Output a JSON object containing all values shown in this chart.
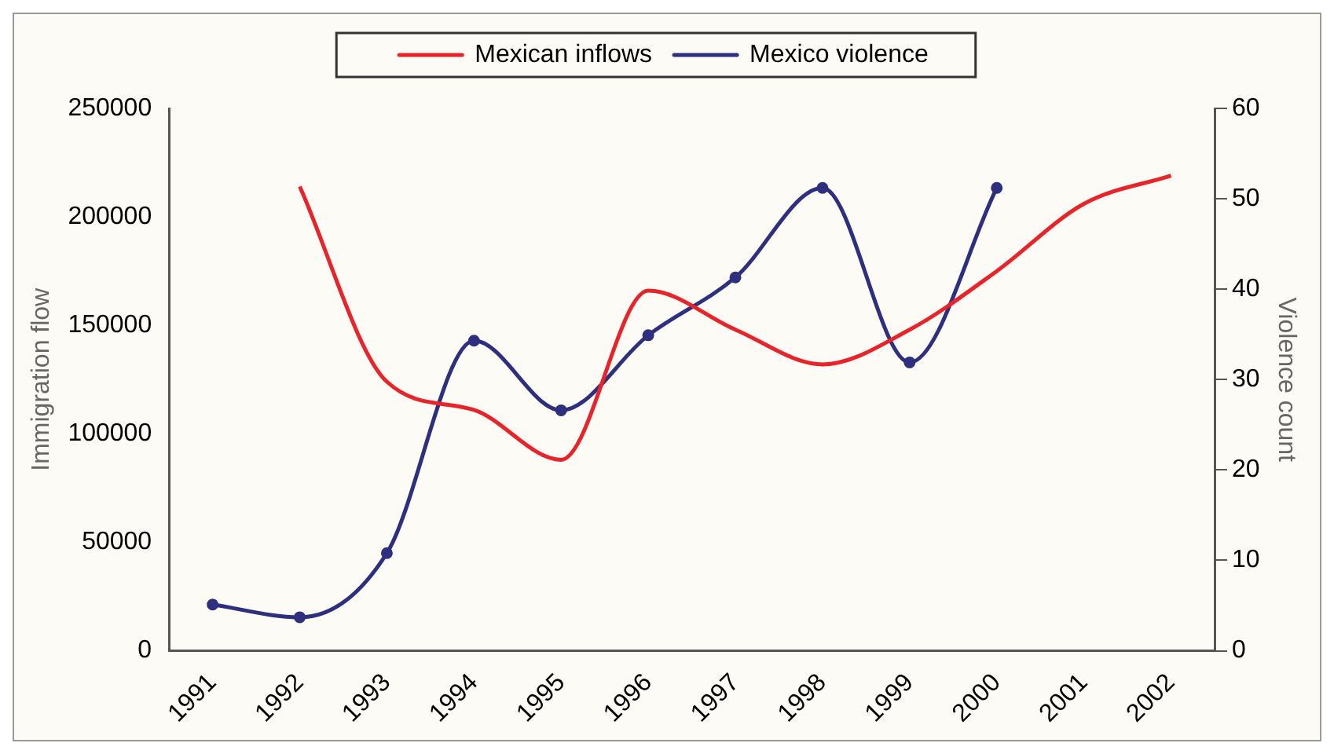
{
  "chart_data": {
    "type": "line",
    "xlabel": null,
    "ylabel": "Immigration flow",
    "y2label": "Violence count",
    "categories": [
      "1991",
      "1992",
      "1993",
      "1994",
      "1995",
      "1996",
      "1997",
      "1998",
      "1999",
      "2000",
      "2001",
      "2002"
    ],
    "series": [
      {
        "name": "Mexican inflows",
        "color": "#e8232a",
        "marker": "none",
        "values": [
          null,
          214000,
          124000,
          111000,
          88000,
          166000,
          148000,
          132000,
          148000,
          175000,
          206000,
          219000
        ]
      },
      {
        "name": "Mexico violence",
        "color": "#2e2f7f",
        "marker": "circle",
        "axis": "y2",
        "values": [
          5.1,
          3.7,
          10.8,
          34.3,
          26.6,
          34.9,
          41.3,
          51.2,
          31.9,
          51.2,
          null,
          null
        ]
      }
    ],
    "ylim": [
      0,
      250000
    ],
    "yticks": [
      0,
      50000,
      100000,
      150000,
      200000,
      250000
    ],
    "y2lim": [
      0,
      60
    ],
    "y2ticks": [
      0,
      10,
      20,
      30,
      40,
      50,
      60
    ],
    "grid": false,
    "legend": "top",
    "line_style": "solid"
  }
}
